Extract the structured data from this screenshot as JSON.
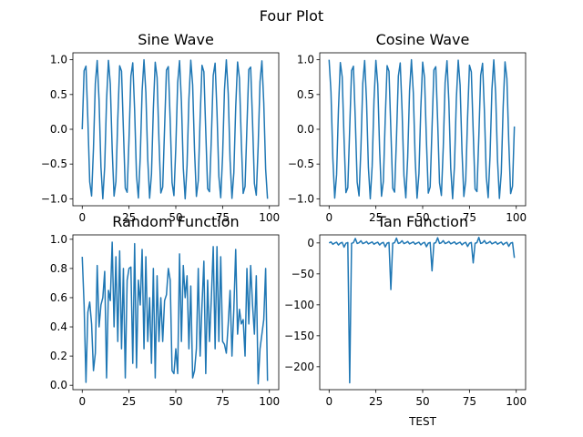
{
  "figure": {
    "suptitle": "Four Plot"
  },
  "chart_data": [
    {
      "type": "line",
      "title": "Sine Wave",
      "xlabel": "",
      "ylabel": "",
      "xlim": [
        -5,
        105
      ],
      "ylim": [
        -1.1,
        1.1
      ],
      "xticks": [
        0,
        25,
        50,
        75,
        100
      ],
      "yticks": [
        -1.0,
        -0.5,
        0.0,
        0.5,
        1.0
      ],
      "ytick_labels": [
        "−1.0",
        "−0.5",
        "0.0",
        "0.5",
        "1.0"
      ],
      "grid": false,
      "x": [
        0,
        1,
        2,
        3,
        4,
        5,
        6,
        7,
        8,
        9,
        10,
        11,
        12,
        13,
        14,
        15,
        16,
        17,
        18,
        19,
        20,
        21,
        22,
        23,
        24,
        25,
        26,
        27,
        28,
        29,
        30,
        31,
        32,
        33,
        34,
        35,
        36,
        37,
        38,
        39,
        40,
        41,
        42,
        43,
        44,
        45,
        46,
        47,
        48,
        49,
        50,
        51,
        52,
        53,
        54,
        55,
        56,
        57,
        58,
        59,
        60,
        61,
        62,
        63,
        64,
        65,
        66,
        67,
        68,
        69,
        70,
        71,
        72,
        73,
        74,
        75,
        76,
        77,
        78,
        79,
        80,
        81,
        82,
        83,
        84,
        85,
        86,
        87,
        88,
        89,
        90,
        91,
        92,
        93,
        94,
        95,
        96,
        97,
        98,
        99
      ],
      "values": [
        0.0,
        0.841,
        0.909,
        0.141,
        -0.757,
        -0.959,
        -0.279,
        0.657,
        0.989,
        0.412,
        -0.544,
        -1.0,
        -0.537,
        0.42,
        0.991,
        0.65,
        -0.288,
        -0.961,
        -0.751,
        0.15,
        0.913,
        0.837,
        -0.009,
        -0.846,
        -0.906,
        -0.132,
        0.763,
        0.956,
        0.271,
        -0.664,
        -0.988,
        -0.404,
        0.551,
        1.0,
        0.529,
        -0.428,
        -0.992,
        -0.644,
        0.296,
        0.964,
        0.745,
        -0.159,
        -0.917,
        -0.832,
        0.018,
        0.851,
        0.902,
        0.124,
        -0.768,
        -0.954,
        -0.262,
        0.67,
        0.987,
        0.396,
        -0.559,
        -1.0,
        -0.522,
        0.436,
        0.993,
        0.637,
        -0.305,
        -0.966,
        -0.739,
        0.167,
        0.92,
        0.827,
        -0.027,
        -0.855,
        -0.898,
        -0.115,
        0.774,
        0.951,
        0.254,
        -0.677,
        -0.985,
        -0.388,
        0.566,
        0.999,
        0.514,
        -0.444,
        -0.994,
        -0.63,
        0.313,
        0.968,
        0.733,
        -0.176,
        -0.923,
        -0.822,
        0.035,
        0.86,
        0.894,
        0.106,
        -0.779,
        -0.948,
        -0.245,
        0.683,
        0.983,
        0.38,
        -0.573,
        -0.999
      ]
    },
    {
      "type": "line",
      "title": "Cosine Wave",
      "xlabel": "",
      "ylabel": "",
      "xlim": [
        -5,
        105
      ],
      "ylim": [
        -1.1,
        1.1
      ],
      "xticks": [
        0,
        25,
        50,
        75,
        100
      ],
      "yticks": [
        -1.0,
        -0.5,
        0.0,
        0.5,
        1.0
      ],
      "ytick_labels": [
        "−1.0",
        "−0.5",
        "0.0",
        "0.5",
        "1.0"
      ],
      "grid": false,
      "x": [
        0,
        1,
        2,
        3,
        4,
        5,
        6,
        7,
        8,
        9,
        10,
        11,
        12,
        13,
        14,
        15,
        16,
        17,
        18,
        19,
        20,
        21,
        22,
        23,
        24,
        25,
        26,
        27,
        28,
        29,
        30,
        31,
        32,
        33,
        34,
        35,
        36,
        37,
        38,
        39,
        40,
        41,
        42,
        43,
        44,
        45,
        46,
        47,
        48,
        49,
        50,
        51,
        52,
        53,
        54,
        55,
        56,
        57,
        58,
        59,
        60,
        61,
        62,
        63,
        64,
        65,
        66,
        67,
        68,
        69,
        70,
        71,
        72,
        73,
        74,
        75,
        76,
        77,
        78,
        79,
        80,
        81,
        82,
        83,
        84,
        85,
        86,
        87,
        88,
        89,
        90,
        91,
        92,
        93,
        94,
        95,
        96,
        97,
        98,
        99
      ],
      "values": [
        1.0,
        0.54,
        -0.416,
        -0.99,
        -0.654,
        0.284,
        0.96,
        0.754,
        -0.146,
        -0.911,
        -0.839,
        0.004,
        0.844,
        0.907,
        0.137,
        -0.76,
        -0.958,
        -0.275,
        0.66,
        0.989,
        0.408,
        -0.548,
        -1.0,
        -0.533,
        0.424,
        0.991,
        0.647,
        -0.292,
        -0.963,
        -0.748,
        0.154,
        0.915,
        0.834,
        -0.013,
        -0.849,
        -0.904,
        -0.128,
        0.765,
        0.955,
        0.267,
        -0.667,
        -0.987,
        -0.4,
        0.555,
        1.0,
        0.525,
        -0.432,
        -0.992,
        -0.64,
        0.3,
        0.965,
        0.742,
        -0.163,
        -0.918,
        -0.83,
        0.022,
        0.853,
        0.9,
        0.119,
        -0.771,
        -0.952,
        -0.258,
        0.674,
        0.986,
        0.392,
        -0.562,
        -0.999,
        -0.518,
        0.44,
        0.993,
        0.634,
        -0.309,
        -0.967,
        -0.736,
        0.172,
        0.922,
        0.825,
        -0.031,
        -0.858,
        -0.896,
        -0.11,
        0.776,
        0.949,
        0.249,
        -0.68,
        -0.984,
        -0.384,
        0.57,
        0.999,
        0.51,
        -0.448,
        -0.995,
        -0.627,
        0.317,
        0.969,
        0.73,
        -0.18,
        -0.925,
        -0.82,
        0.04
      ]
    },
    {
      "type": "line",
      "title": "Random Function",
      "xlabel": "",
      "ylabel": "",
      "xlim": [
        -5,
        105
      ],
      "ylim": [
        -0.03,
        1.03
      ],
      "xticks": [
        0,
        25,
        50,
        75,
        100
      ],
      "yticks": [
        0.0,
        0.2,
        0.4,
        0.6,
        0.8,
        1.0
      ],
      "ytick_labels": [
        "0.0",
        "0.2",
        "0.4",
        "0.6",
        "0.8",
        "1.0"
      ],
      "grid": false,
      "x": [
        0,
        1,
        2,
        3,
        4,
        5,
        6,
        7,
        8,
        9,
        10,
        11,
        12,
        13,
        14,
        15,
        16,
        17,
        18,
        19,
        20,
        21,
        22,
        23,
        24,
        25,
        26,
        27,
        28,
        29,
        30,
        31,
        32,
        33,
        34,
        35,
        36,
        37,
        38,
        39,
        40,
        41,
        42,
        43,
        44,
        45,
        46,
        47,
        48,
        49,
        50,
        51,
        52,
        53,
        54,
        55,
        56,
        57,
        58,
        59,
        60,
        61,
        62,
        63,
        64,
        65,
        66,
        67,
        68,
        69,
        70,
        71,
        72,
        73,
        74,
        75,
        76,
        77,
        78,
        79,
        80,
        81,
        82,
        83,
        84,
        85,
        86,
        87,
        88,
        89,
        90,
        91,
        92,
        93,
        94,
        95,
        96,
        97,
        98,
        99
      ],
      "values": [
        0.88,
        0.55,
        0.02,
        0.5,
        0.57,
        0.42,
        0.1,
        0.22,
        0.82,
        0.4,
        0.55,
        0.6,
        0.78,
        0.05,
        0.65,
        0.58,
        0.98,
        0.4,
        0.88,
        0.3,
        0.92,
        0.25,
        0.8,
        0.05,
        0.72,
        0.8,
        0.81,
        0.15,
        0.97,
        0.12,
        0.72,
        0.55,
        0.93,
        0.25,
        0.88,
        0.3,
        0.6,
        0.15,
        0.8,
        0.05,
        0.75,
        0.3,
        0.6,
        0.3,
        0.58,
        0.62,
        0.8,
        0.72,
        0.1,
        0.08,
        0.25,
        0.08,
        0.9,
        0.3,
        0.82,
        0.6,
        0.75,
        0.25,
        0.68,
        0.05,
        0.1,
        0.25,
        0.8,
        0.2,
        0.55,
        0.85,
        0.08,
        0.72,
        0.3,
        0.6,
        0.95,
        0.25,
        0.95,
        0.3,
        0.88,
        0.3,
        0.28,
        0.22,
        0.42,
        0.65,
        0.2,
        0.52,
        0.93,
        0.35,
        0.52,
        0.42,
        0.45,
        0.2,
        0.8,
        0.42,
        0.82,
        0.55,
        0.35,
        0.75,
        0.01,
        0.25,
        0.35,
        0.45,
        0.8,
        0.03
      ]
    },
    {
      "type": "line",
      "title": "Tan Function",
      "xlabel": "TEST",
      "ylabel": "",
      "xlim": [
        -5,
        105
      ],
      "ylim": [
        -237,
        13
      ],
      "xticks": [
        0,
        25,
        50,
        75,
        100
      ],
      "yticks": [
        -200,
        -150,
        -100,
        -50,
        0
      ],
      "ytick_labels": [
        "−200",
        "−150",
        "−100",
        "−50",
        "0"
      ],
      "grid": false,
      "x": [
        0,
        1,
        2,
        3,
        4,
        5,
        6,
        7,
        8,
        9,
        10,
        11,
        12,
        13,
        14,
        15,
        16,
        17,
        18,
        19,
        20,
        21,
        22,
        23,
        24,
        25,
        26,
        27,
        28,
        29,
        30,
        31,
        32,
        33,
        34,
        35,
        36,
        37,
        38,
        39,
        40,
        41,
        42,
        43,
        44,
        45,
        46,
        47,
        48,
        49,
        50,
        51,
        52,
        53,
        54,
        55,
        56,
        57,
        58,
        59,
        60,
        61,
        62,
        63,
        64,
        65,
        66,
        67,
        68,
        69,
        70,
        71,
        72,
        73,
        74,
        75,
        76,
        77,
        78,
        79,
        80,
        81,
        82,
        83,
        84,
        85,
        86,
        87,
        88,
        89,
        90,
        91,
        92,
        93,
        94,
        95,
        96,
        97,
        98,
        99
      ],
      "values": [
        0.0,
        1.557,
        -2.185,
        -0.143,
        1.158,
        -3.381,
        -0.291,
        0.871,
        -6.8,
        -0.452,
        0.648,
        -225.951,
        -0.636,
        0.463,
        7.244,
        -0.856,
        0.301,
        3.494,
        -1.137,
        0.151,
        2.237,
        -1.527,
        -0.009,
        1.588,
        -2.135,
        -0.134,
        1.18,
        -3.273,
        -0.282,
        0.887,
        -6.405,
        -0.441,
        0.662,
        -75.313,
        -0.623,
        0.474,
        7.75,
        -0.841,
        0.31,
        3.61,
        -1.117,
        0.16,
        2.29,
        -1.5,
        0.018,
        1.62,
        -2.087,
        -0.125,
        1.203,
        -3.172,
        -0.272,
        0.903,
        -6.053,
        -0.429,
        0.677,
        -45.183,
        -0.611,
        0.486,
        8.33,
        -0.826,
        0.32,
        3.733,
        -1.098,
        0.169,
        2.344,
        -1.474,
        0.027,
        1.652,
        -2.04,
        -0.116,
        1.222,
        -3.078,
        -0.262,
        0.918,
        -5.736,
        -0.418,
        0.691,
        -32.268,
        -0.599,
        0.497,
        9.004,
        -0.811,
        0.329,
        3.865,
        -1.079,
        0.179,
        2.402,
        -1.448,
        0.036,
        1.683,
        -1.995,
        -0.106,
        1.245,
        -2.989,
        -0.253,
        0.935,
        -5.451,
        -0.407,
        0.706,
        -24.1
      ]
    }
  ]
}
